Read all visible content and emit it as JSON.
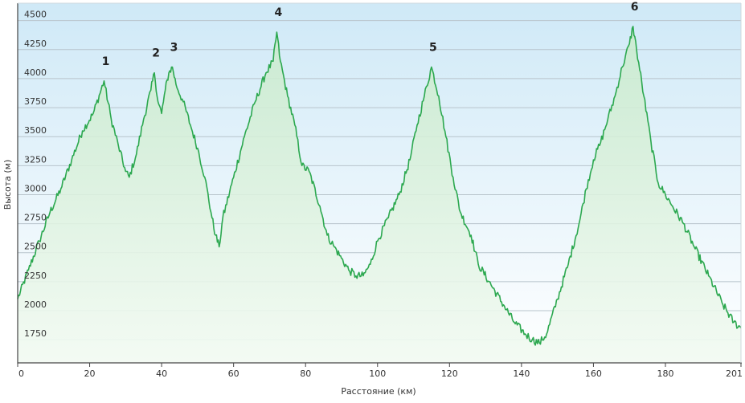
{
  "chart_data": {
    "type": "area",
    "xlabel": "Расстояние (км)",
    "ylabel": "Высота (м)",
    "xlim": [
      0,
      201
    ],
    "ylim": [
      1550,
      4650
    ],
    "x_ticks": [
      "0",
      "20",
      "40",
      "60",
      "80",
      "100",
      "120",
      "140",
      "160",
      "180",
      "201"
    ],
    "y_ticks": [
      "4500",
      "4250",
      "4000",
      "3750",
      "3500",
      "3250",
      "3000",
      "2750",
      "2500",
      "2250",
      "2000",
      "1750"
    ],
    "grid": true,
    "colors": {
      "line": "#2ca84f",
      "fill_top": "#c8eacb",
      "fill_bottom": "#f2faf2",
      "bg_top": "#cfe9f7",
      "bg_bottom": "#ffffff"
    },
    "series": [
      {
        "x": [
          0,
          3,
          6,
          9,
          12,
          15,
          18,
          21,
          24,
          26,
          28,
          30,
          31,
          33,
          35,
          37,
          38,
          39,
          40,
          41,
          42,
          43,
          44,
          46,
          48,
          50,
          52,
          54,
          55,
          56,
          57,
          60,
          63,
          66,
          69,
          71,
          72,
          73,
          75,
          77,
          79,
          81,
          84,
          86,
          88,
          90,
          92,
          94,
          96,
          98,
          100,
          103,
          106,
          109,
          111,
          113,
          115,
          117,
          119,
          121,
          123,
          126,
          128,
          131,
          135,
          138,
          141,
          143,
          145,
          147,
          150,
          153,
          156,
          158,
          160,
          162,
          164,
          166,
          168,
          170,
          171,
          172,
          174,
          176,
          178,
          180,
          182,
          185,
          188,
          192,
          196,
          199,
          201
        ],
        "values": [
          2100,
          2350,
          2600,
          2850,
          3050,
          3300,
          3550,
          3700,
          3980,
          3650,
          3420,
          3200,
          3150,
          3350,
          3650,
          3900,
          4050,
          3800,
          3700,
          3900,
          4050,
          4100,
          3950,
          3800,
          3600,
          3400,
          3150,
          2800,
          2650,
          2550,
          2800,
          3150,
          3500,
          3800,
          4050,
          4150,
          4400,
          4150,
          3850,
          3600,
          3250,
          3200,
          2900,
          2650,
          2550,
          2450,
          2350,
          2300,
          2300,
          2400,
          2600,
          2800,
          3000,
          3300,
          3600,
          3850,
          4100,
          3850,
          3500,
          3150,
          2850,
          2650,
          2400,
          2250,
          2050,
          1900,
          1800,
          1750,
          1720,
          1800,
          2100,
          2400,
          2750,
          3050,
          3300,
          3450,
          3650,
          3850,
          4100,
          4300,
          4450,
          4250,
          3850,
          3450,
          3100,
          3000,
          2900,
          2750,
          2550,
          2300,
          2050,
          1900,
          1850
        ]
      }
    ],
    "annotations": [
      {
        "text": "1",
        "x": 24,
        "y": 3980
      },
      {
        "text": "2",
        "x": 38,
        "y": 4050
      },
      {
        "text": "3",
        "x": 43,
        "y": 4100
      },
      {
        "text": "4",
        "x": 72,
        "y": 4400
      },
      {
        "text": "5",
        "x": 115,
        "y": 4100
      },
      {
        "text": "6",
        "x": 171,
        "y": 4450
      }
    ]
  }
}
